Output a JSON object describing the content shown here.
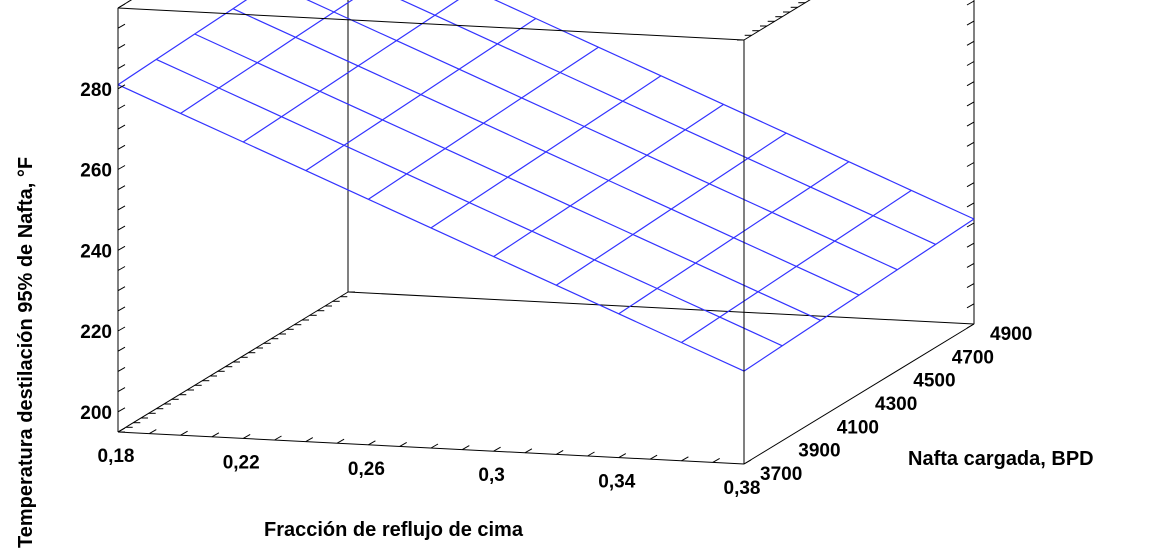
{
  "chart_data": {
    "type": "surface3d",
    "title": "",
    "xlabel": "Fracción de reflujo de cima",
    "ylabel": "Nafta cargada, BPD",
    "zlabel": "Temperatura destilación 95% de Nafta, °F",
    "xlim": [
      0.18,
      0.38
    ],
    "ylim": [
      3700,
      4900
    ],
    "zlim": [
      195,
      300
    ],
    "x_ticks": [
      "0,18",
      "0,22",
      "0,26",
      "0,3",
      "0,34",
      "0,38"
    ],
    "x_tick_values": [
      0.18,
      0.22,
      0.26,
      0.3,
      0.34,
      0.38
    ],
    "y_ticks": [
      "3700",
      "3900",
      "4100",
      "4300",
      "4500",
      "4700",
      "4900"
    ],
    "y_tick_values": [
      3700,
      3900,
      4100,
      4300,
      4500,
      4700,
      4900
    ],
    "z_ticks": [
      "200",
      "220",
      "240",
      "260",
      "280"
    ],
    "z_tick_values": [
      200,
      220,
      240,
      260,
      280
    ],
    "surface_corners": [
      {
        "x": 0.18,
        "y": 3700,
        "z": 281
      },
      {
        "x": 0.38,
        "y": 3700,
        "z": 218
      },
      {
        "x": 0.18,
        "y": 4900,
        "z": 284
      },
      {
        "x": 0.38,
        "y": 4900,
        "z": 221
      }
    ],
    "grid_x_divisions": 10,
    "grid_y_divisions": 6,
    "surface_color": "#3333ff",
    "grid": true
  }
}
